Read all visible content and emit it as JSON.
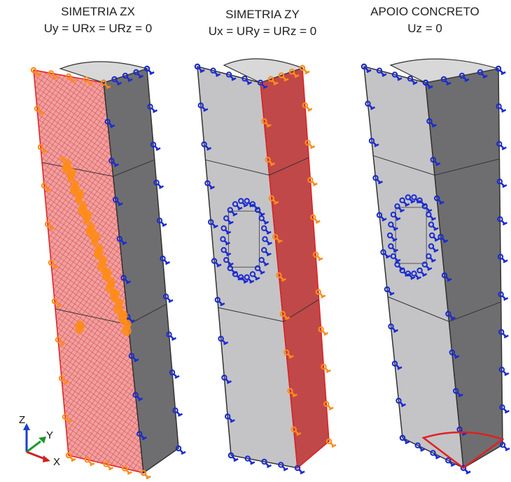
{
  "panels": [
    {
      "title": "SIMETRIA ZX",
      "condition": "Uy = URx = URz = 0"
    },
    {
      "title": "SIMETRIA ZY",
      "condition": "Ux = URy = URz = 0"
    },
    {
      "title": "APOIO CONCRETO",
      "condition": "Uz = 0"
    }
  ],
  "triad": {
    "z": "Z",
    "y": "Y",
    "x": "X"
  }
}
